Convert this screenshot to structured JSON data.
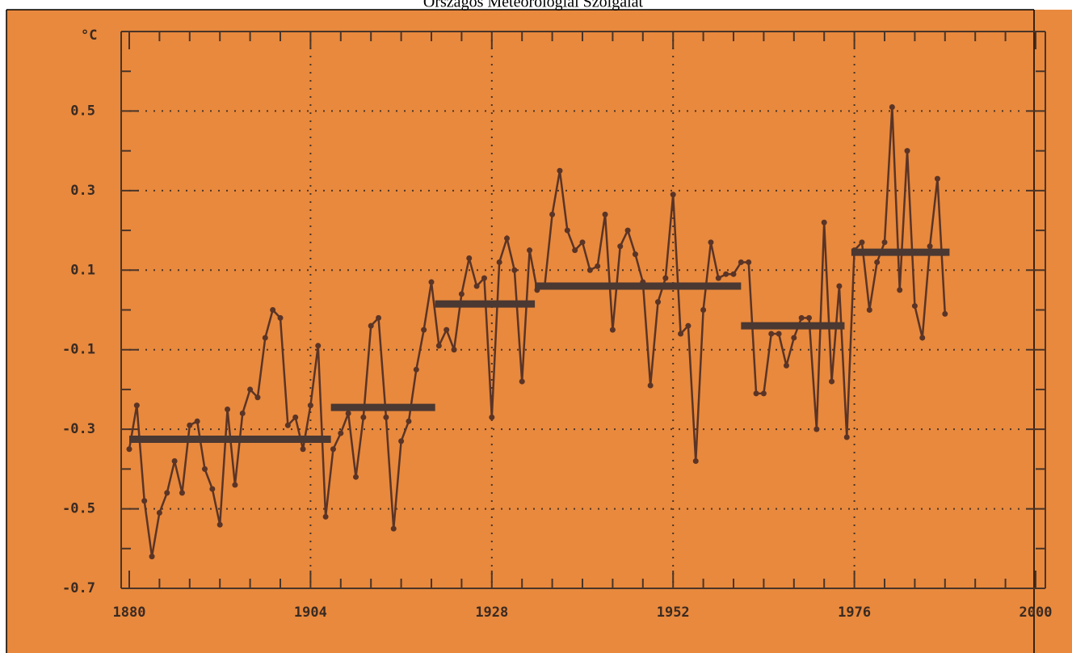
{
  "chart_data": {
    "type": "line",
    "title": "Országos Meteorológiai Szolgálat",
    "y_label": "°C",
    "background": "#e8893d",
    "x": [
      1880,
      1881,
      1882,
      1883,
      1884,
      1885,
      1886,
      1887,
      1888,
      1889,
      1890,
      1891,
      1892,
      1893,
      1894,
      1895,
      1896,
      1897,
      1898,
      1899,
      1900,
      1901,
      1902,
      1903,
      1904,
      1905,
      1906,
      1907,
      1908,
      1909,
      1910,
      1911,
      1912,
      1913,
      1914,
      1915,
      1916,
      1917,
      1918,
      1919,
      1920,
      1921,
      1922,
      1923,
      1924,
      1925,
      1926,
      1927,
      1928,
      1929,
      1930,
      1931,
      1932,
      1933,
      1934,
      1935,
      1936,
      1937,
      1938,
      1939,
      1940,
      1941,
      1942,
      1943,
      1944,
      1945,
      1946,
      1947,
      1948,
      1949,
      1950,
      1951,
      1952,
      1953,
      1954,
      1955,
      1956,
      1957,
      1958,
      1959,
      1960,
      1961,
      1962,
      1963,
      1964,
      1965,
      1966,
      1967,
      1968,
      1969,
      1970,
      1971,
      1972,
      1973,
      1974,
      1975,
      1976,
      1977,
      1978,
      1979,
      1980,
      1981,
      1982,
      1983,
      1984,
      1985,
      1986,
      1987,
      1988
    ],
    "series": [
      {
        "color": "#5a3426",
        "values": [
          -0.35,
          -0.24,
          -0.48,
          -0.62,
          -0.51,
          -0.46,
          -0.38,
          -0.46,
          -0.29,
          -0.28,
          -0.4,
          -0.45,
          -0.54,
          -0.25,
          -0.44,
          -0.26,
          -0.2,
          -0.22,
          -0.07,
          0.0,
          -0.02,
          -0.29,
          -0.27,
          -0.35,
          -0.24,
          -0.09,
          -0.52,
          -0.35,
          -0.31,
          -0.26,
          -0.42,
          -0.27,
          -0.04,
          -0.02,
          -0.27,
          -0.55,
          -0.33,
          -0.28,
          -0.15,
          -0.05,
          0.07,
          -0.09,
          -0.05,
          -0.1,
          0.04,
          0.13,
          0.06,
          0.08,
          -0.27,
          0.12,
          0.18,
          0.1,
          -0.18,
          0.15,
          0.05,
          0.06,
          0.24,
          0.35,
          0.2,
          0.15,
          0.17,
          0.1,
          0.11,
          0.24,
          -0.05,
          0.16,
          0.2,
          0.14,
          0.07,
          -0.19,
          0.02,
          0.08,
          0.29,
          -0.06,
          -0.04,
          -0.38,
          0.0,
          0.17,
          0.08,
          0.09,
          0.09,
          0.12,
          0.12,
          -0.21,
          -0.21,
          -0.06,
          -0.06,
          -0.14,
          -0.07,
          -0.02,
          -0.02,
          -0.3,
          0.22,
          -0.18,
          0.06,
          -0.32,
          0.15,
          0.17,
          0.0,
          0.12,
          0.17,
          0.51,
          0.05,
          0.4,
          0.01,
          -0.07,
          0.16,
          0.33,
          -0.01
        ]
      }
    ],
    "segments": [
      {
        "start": 1880,
        "end": 1906.7,
        "value": -0.325
      },
      {
        "start": 1906.7,
        "end": 1920.5,
        "value": -0.245
      },
      {
        "start": 1920.5,
        "end": 1933.7,
        "value": 0.015
      },
      {
        "start": 1933.7,
        "end": 1961,
        "value": 0.06
      },
      {
        "start": 1961,
        "end": 1974.7,
        "value": -0.04
      },
      {
        "start": 1975.6,
        "end": 1988.6,
        "value": 0.145
      }
    ],
    "segment_color": "#4a3832",
    "xlim": [
      1880,
      2000
    ],
    "ylim": [
      -0.7,
      0.7
    ],
    "xticks": [
      1880,
      1904,
      1928,
      1952,
      1976,
      2000
    ],
    "yticks": [
      -0.7,
      -0.5,
      -0.3,
      -0.1,
      0.1,
      0.3,
      0.5
    ],
    "grid": true
  }
}
